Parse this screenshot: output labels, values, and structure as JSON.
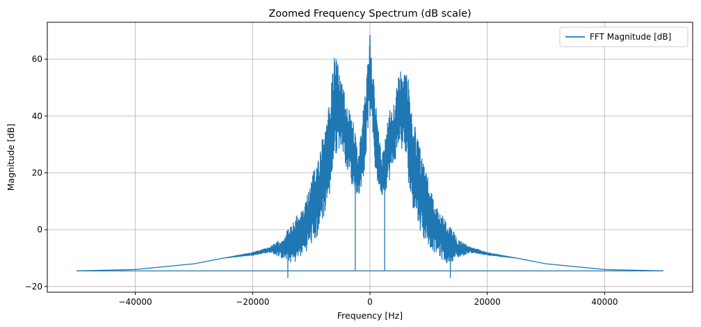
{
  "chart_data": {
    "type": "line",
    "title": "Zoomed Frequency Spectrum (dB scale)",
    "xlabel": "Frequency [Hz]",
    "ylabel": "Magnitude [dB]",
    "xlim": [
      -55000,
      55000
    ],
    "ylim": [
      -22,
      73
    ],
    "xticks": [
      -40000,
      -20000,
      0,
      20000,
      40000
    ],
    "xtick_labels": [
      "−40000",
      "−20000",
      "0",
      "20000",
      "40000"
    ],
    "yticks": [
      -20,
      0,
      20,
      40,
      60
    ],
    "ytick_labels": [
      "−20",
      "0",
      "20",
      "40",
      "60"
    ],
    "grid": true,
    "legend": {
      "placement": "top-right",
      "entries": [
        "FFT Magnitude [dB]"
      ]
    },
    "series": [
      {
        "name": "FFT Magnitude [dB]",
        "color": "#1f77b4",
        "envelope": {
          "x": [
            -50000,
            -40000,
            -30000,
            -25000,
            -20000,
            -17000,
            -15000,
            -13000,
            -11000,
            -9000,
            -7000,
            -6000,
            -5000,
            -4000,
            -3000,
            -2000,
            -1000,
            0,
            1000,
            2000,
            3000,
            4000,
            5000,
            6000,
            7000,
            9000,
            11000,
            13000,
            15000,
            17000,
            20000,
            25000,
            30000,
            40000,
            50000
          ],
          "upper": [
            -14.5,
            -14,
            -12,
            -10,
            -8,
            -6,
            -3,
            3,
            10,
            25,
            45,
            62,
            55,
            45,
            42,
            25,
            45,
            68,
            45,
            25,
            42,
            45,
            55,
            62,
            45,
            25,
            10,
            3,
            -3,
            -6,
            -8,
            -10,
            -12,
            -14,
            -14.5
          ],
          "lower": [
            -14.5,
            -14,
            -12,
            -10,
            -9,
            -8,
            -10,
            -12,
            -8,
            -3,
            10,
            25,
            30,
            22,
            15,
            12,
            18,
            45,
            18,
            12,
            15,
            22,
            30,
            25,
            10,
            -3,
            -8,
            -12,
            -10,
            -8,
            -9,
            -10,
            -12,
            -14,
            -14.5
          ]
        },
        "baseline": -14.5,
        "notch_x": [
          -2500,
          2500
        ],
        "min_dips": {
          "x": [
            -14000,
            13700
          ],
          "y": [
            -17,
            -17
          ]
        },
        "peak": {
          "x": 0,
          "y": 68.5
        }
      }
    ]
  }
}
